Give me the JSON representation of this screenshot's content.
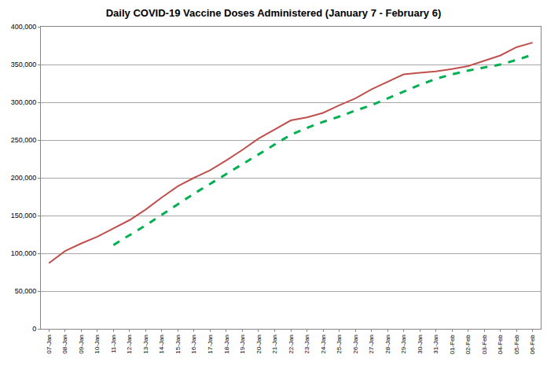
{
  "chart_data": {
    "type": "line",
    "title": "Daily COVID-19 Vaccine Doses Administered (January 7 - February 6)",
    "categories": [
      "07-Jan",
      "08-Jan",
      "09-Jan",
      "10-Jan",
      "11-Jan",
      "12-Jan",
      "13-Jan",
      "14-Jan",
      "15-Jan",
      "16-Jan",
      "17-Jan",
      "18-Jan",
      "19-Jan",
      "20-Jan",
      "21-Jan",
      "22-Jan",
      "23-Jan",
      "24-Jan",
      "25-Jan",
      "26-Jan",
      "27-Jan",
      "28-Jan",
      "29-Jan",
      "30-Jan",
      "31-Jan",
      "01-Feb",
      "02-Feb",
      "03-Feb",
      "04-Feb",
      "05-Feb",
      "06-Feb"
    ],
    "series": [
      {
        "color": "#c0504d",
        "line_style": "solid",
        "values": [
          87000,
          103000,
          113000,
          122000,
          133000,
          144000,
          158000,
          174000,
          189000,
          200000,
          210000,
          223000,
          237000,
          252000,
          264000,
          276000,
          280000,
          286000,
          296000,
          305000,
          317000,
          327000,
          337000,
          339000,
          341000,
          344000,
          348000,
          355000,
          362000,
          373000,
          379000
        ]
      },
      {
        "color": "#00b050",
        "line_style": "dashed",
        "values": [
          null,
          null,
          null,
          null,
          111000,
          124000,
          137000,
          151000,
          165000,
          179000,
          192000,
          205000,
          218000,
          231000,
          244000,
          257000,
          266000,
          274000,
          281000,
          289000,
          296000,
          305000,
          314000,
          323000,
          331000,
          337000,
          342000,
          346000,
          350000,
          356000,
          363000
        ]
      }
    ],
    "ylim": [
      0,
      400000
    ],
    "yticks": [
      0,
      {
        "value": 50000,
        "label": "50,000"
      },
      {
        "value": 100000,
        "label": "100,000"
      },
      {
        "value": 150000,
        "label": "150,000"
      },
      {
        "value": 200000,
        "label": "200,000"
      },
      {
        "value": 250000,
        "label": "250,000"
      },
      {
        "value": 300000,
        "label": "300,000"
      },
      {
        "value": 350000,
        "label": "350,000"
      },
      {
        "value": 400000,
        "label": "400,000"
      }
    ],
    "grid": true
  }
}
